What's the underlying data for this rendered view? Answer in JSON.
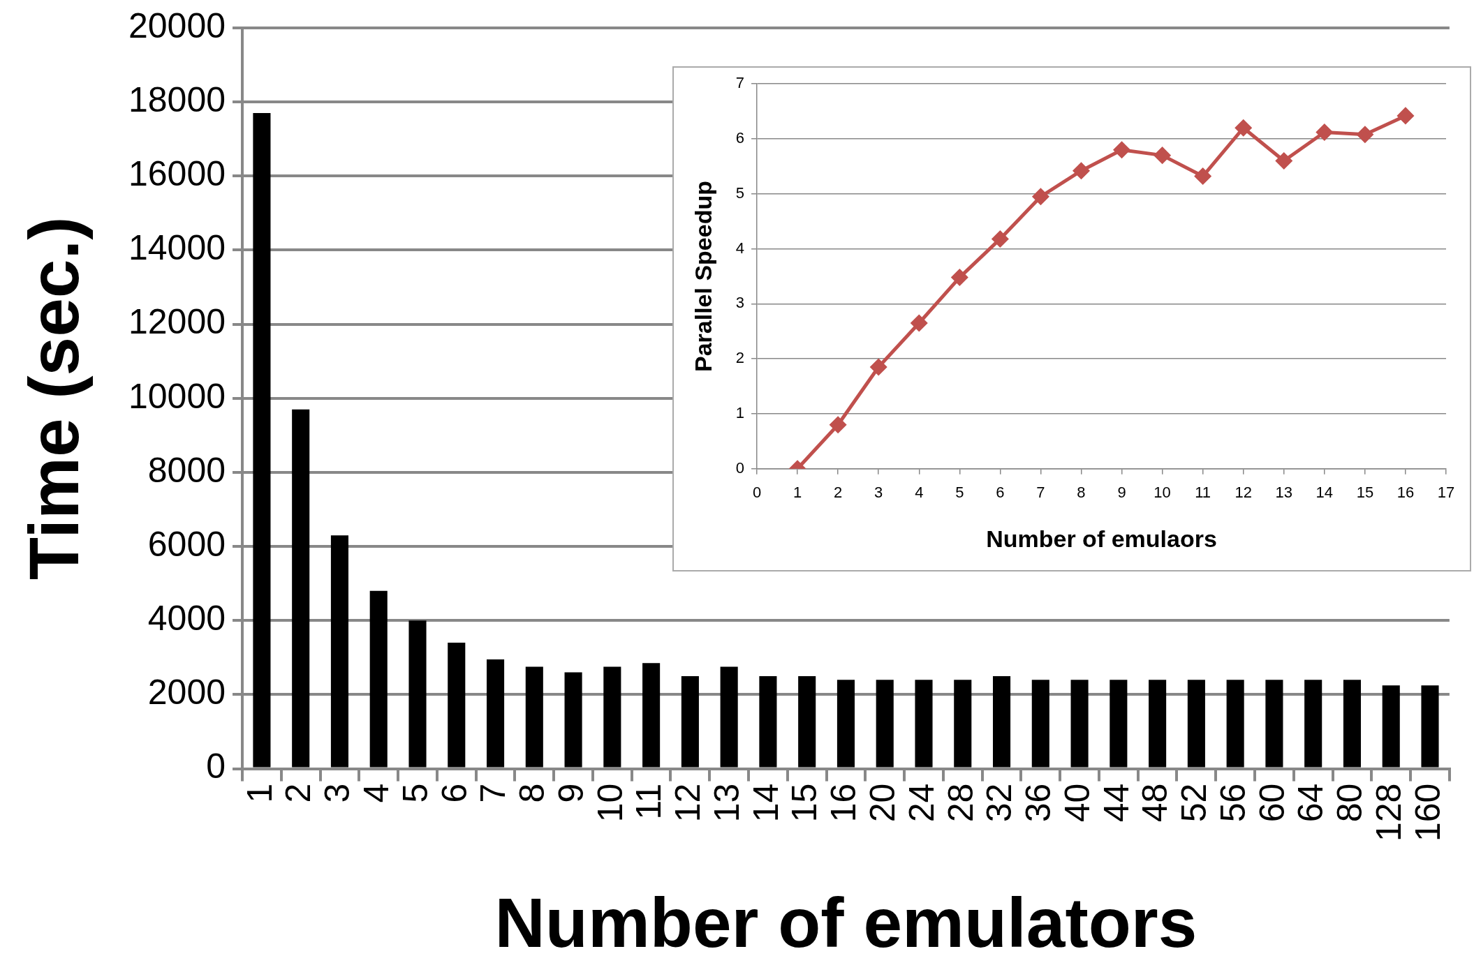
{
  "chart_data": [
    {
      "type": "bar",
      "xlabel": "Number of emulators",
      "ylabel": "Time (sec.)",
      "categories": [
        "1",
        "2",
        "3",
        "4",
        "5",
        "6",
        "7",
        "8",
        "9",
        "10",
        "11",
        "12",
        "13",
        "14",
        "15",
        "16",
        "20",
        "24",
        "28",
        "32",
        "36",
        "40",
        "44",
        "48",
        "52",
        "56",
        "60",
        "64",
        "80",
        "128",
        "160"
      ],
      "values": [
        17700,
        9700,
        6300,
        4800,
        4000,
        3400,
        2950,
        2750,
        2600,
        2750,
        2850,
        2500,
        2750,
        2500,
        2500,
        2400,
        2400,
        2400,
        2400,
        2500,
        2400,
        2400,
        2400,
        2400,
        2400,
        2400,
        2400,
        2400,
        2400,
        2250,
        2250
      ],
      "color": "#000000",
      "ylim": [
        0,
        20000
      ],
      "yticks": [
        0,
        2000,
        4000,
        6000,
        8000,
        10000,
        12000,
        14000,
        16000,
        18000,
        20000
      ],
      "grid": "y"
    },
    {
      "type": "line",
      "xlabel": "Number of emulaors",
      "ylabel": "Parallel Speedup",
      "x": [
        1,
        2,
        3,
        4,
        5,
        6,
        7,
        8,
        9,
        10,
        11,
        12,
        13,
        14,
        15,
        16
      ],
      "values": [
        0,
        0.8,
        1.85,
        2.65,
        3.48,
        4.18,
        4.95,
        5.42,
        5.8,
        5.7,
        5.32,
        6.2,
        5.6,
        6.12,
        6.08,
        6.42
      ],
      "color": "#c0504d",
      "marker": "diamond",
      "xlim": [
        0,
        17
      ],
      "xticks": [
        0,
        1,
        2,
        3,
        4,
        5,
        6,
        7,
        8,
        9,
        10,
        11,
        12,
        13,
        14,
        15,
        16,
        17
      ],
      "ylim": [
        0,
        7
      ],
      "yticks": [
        0,
        1,
        2,
        3,
        4,
        5,
        6,
        7
      ],
      "grid": "y"
    }
  ]
}
